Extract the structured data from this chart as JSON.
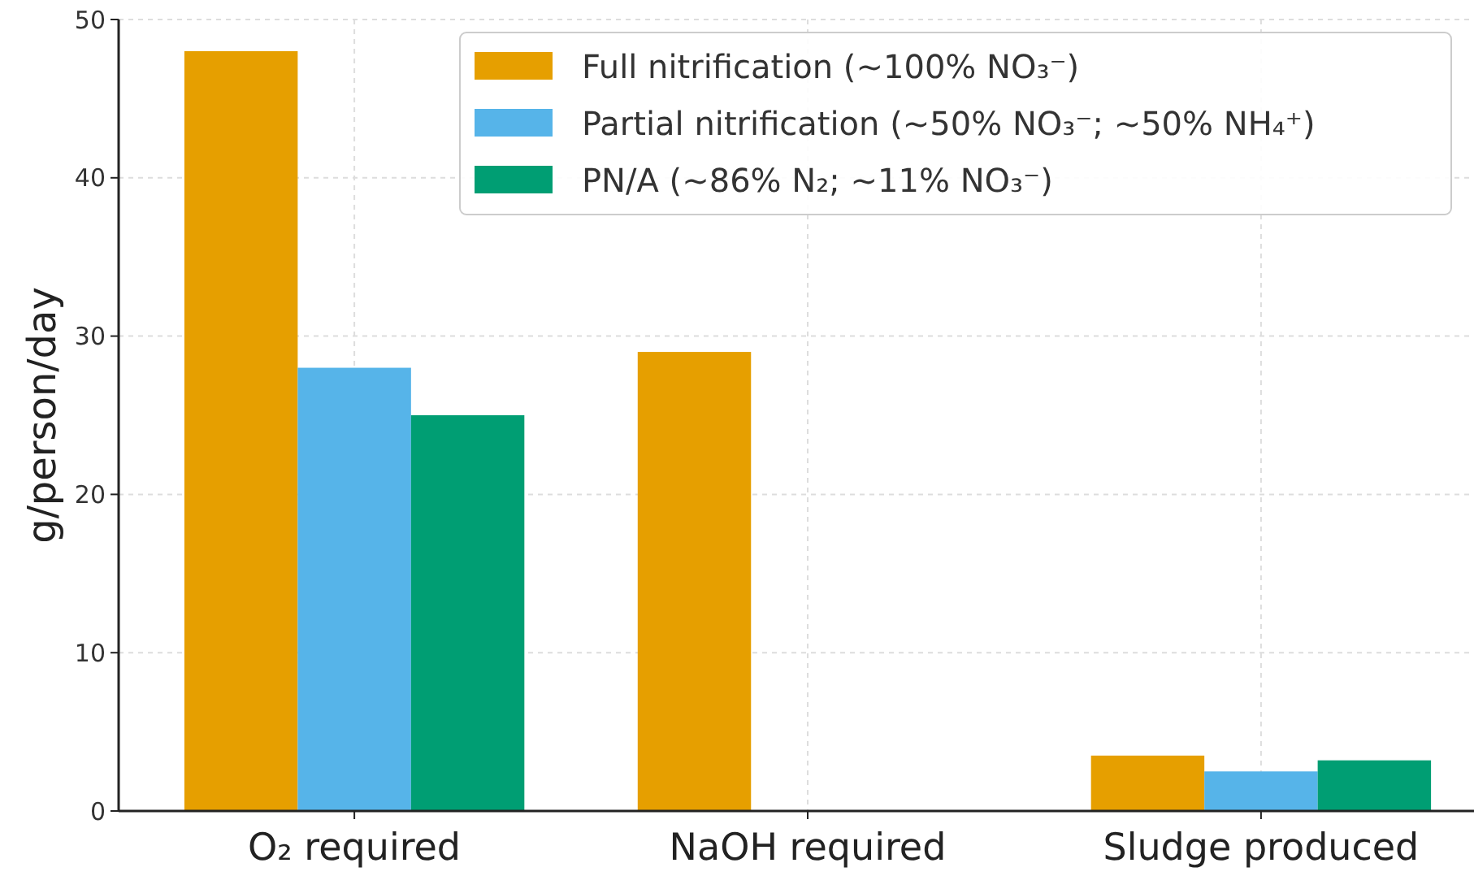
{
  "chart_data": {
    "type": "bar",
    "ylabel": "g/person/day",
    "categories": [
      "O₂ required",
      "NaOH required",
      "Sludge produced"
    ],
    "series": [
      {
        "name": "Full nitrification (~100% NO₃⁻)",
        "color": "#e69f00",
        "values": [
          48,
          29,
          3.5
        ]
      },
      {
        "name": "Partial nitrification (~50% NO₃⁻; ~50% NH₄⁺)",
        "color": "#56b4e9",
        "values": [
          28,
          0,
          2.5
        ]
      },
      {
        "name": "PN/A (~86% N₂; ~11% NO₃⁻)",
        "color": "#009e73",
        "values": [
          25,
          0,
          3.2
        ]
      }
    ],
    "ylim": [
      0,
      50
    ],
    "yticks": [
      0,
      10,
      20,
      30,
      40,
      50
    ],
    "grid": true,
    "legend": "top right"
  }
}
